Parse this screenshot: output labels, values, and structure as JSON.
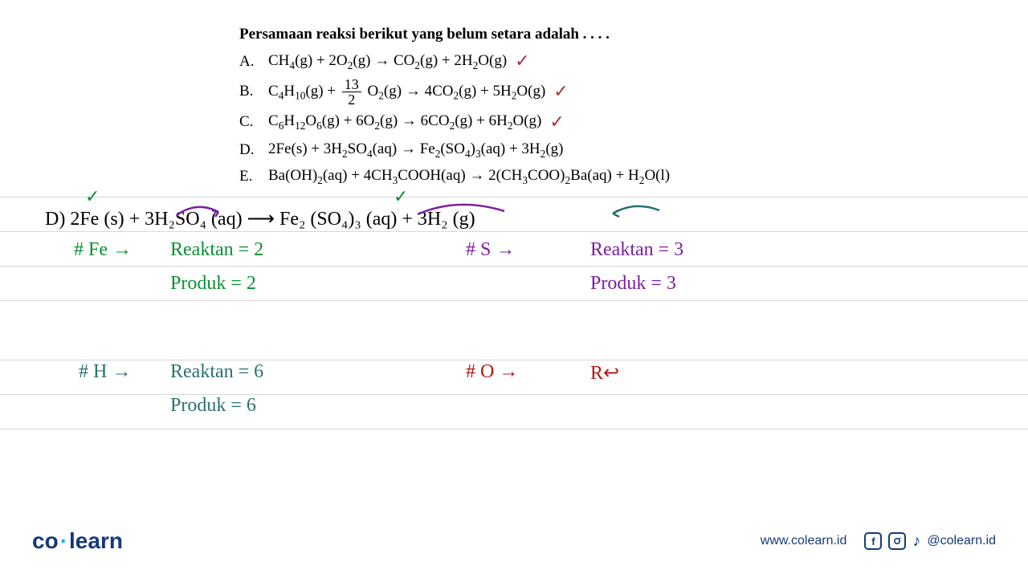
{
  "question": {
    "title": "Persamaan reaksi berikut yang belum setara adalah . . . .",
    "options": {
      "A": {
        "label": "A.",
        "eq_html": "CH<span class='sub'>4</span>(g) + 2O<span class='sub'>2</span>(g) → CO<span class='sub'>2</span>(g) + 2H<span class='sub'>2</span>O(g)",
        "checked": true
      },
      "B": {
        "label": "B.",
        "eq_html": "C<span class='sub'>4</span>H<span class='sub'>10</span>(g) + <span class='frac'><span class='num'>13</span><span class='den'>2</span></span> O<span class='sub'>2</span>(g) → 4CO<span class='sub'>2</span>(g) + 5H<span class='sub'>2</span>O(g)",
        "checked": true
      },
      "C": {
        "label": "C.",
        "eq_html": "C<span class='sub'>6</span>H<span class='sub'>12</span>O<span class='sub'>6</span>(g) + 6O<span class='sub'>2</span>(g) → 6CO<span class='sub'>2</span>(g) + 6H<span class='sub'>2</span>O(g)",
        "checked": true
      },
      "D": {
        "label": "D.",
        "eq_html": "2Fe(s) + 3H<span class='sub'>2</span>SO<span class='sub'>4</span>(aq) → Fe<span class='sub'>2</span>(SO<span class='sub'>4</span>)<span class='sub'>3</span>(aq) + 3H<span class='sub'>2</span>(g)",
        "checked": false
      },
      "E": {
        "label": "E.",
        "eq_html": "Ba(OH)<span class='sub'>2</span>(aq) + 4CH<span class='sub'>3</span>COOH(aq) → 2(CH<span class='sub'>3</span>COO)<span class='sub'>2</span>Ba(aq) + H<span class='sub'>2</span>O(l)",
        "checked": false
      }
    },
    "check_mark": "✓"
  },
  "handwriting": {
    "eqD": "D)  2Fe (s)  +   3H₂SO₄ (aq)    ⟶    Fe₂ (SO₄)₃ (aq)  +    3H₂ (g)",
    "fe_label": "# Fe  →",
    "fe_reaktan": "Reaktan  = 2",
    "fe_produk": "Produk = 2",
    "s_label": "#  S   →",
    "s_reaktan": "Reaktan  = 3",
    "s_produk": "Produk  =  3",
    "h_label": "#  H  →",
    "h_reaktan": "Reaktan  = 6",
    "h_produk": "Produk =  6",
    "o_label": "#  O   →",
    "o_value": "R↩",
    "check_small_1": "✓",
    "check_small_2": "✓"
  },
  "footer": {
    "logo_left": "co",
    "logo_right": "learn",
    "url": "www.colearn.id",
    "handle": "@colearn.id"
  },
  "colors": {
    "black": "#000000",
    "green": "#0a9030",
    "purple": "#7a1fa2",
    "red": "#b01818",
    "teal": "#2a7070",
    "check_red": "#a83234",
    "line": "#d8d8d8",
    "brand": "#153a7a",
    "brand_accent": "#1fb0d4",
    "bg": "#ffffff"
  },
  "line_spacing": {
    "small_gap": 42,
    "large_gap": 73
  },
  "fonts": {
    "print": 19,
    "handwriting": 24,
    "logo": 28
  }
}
